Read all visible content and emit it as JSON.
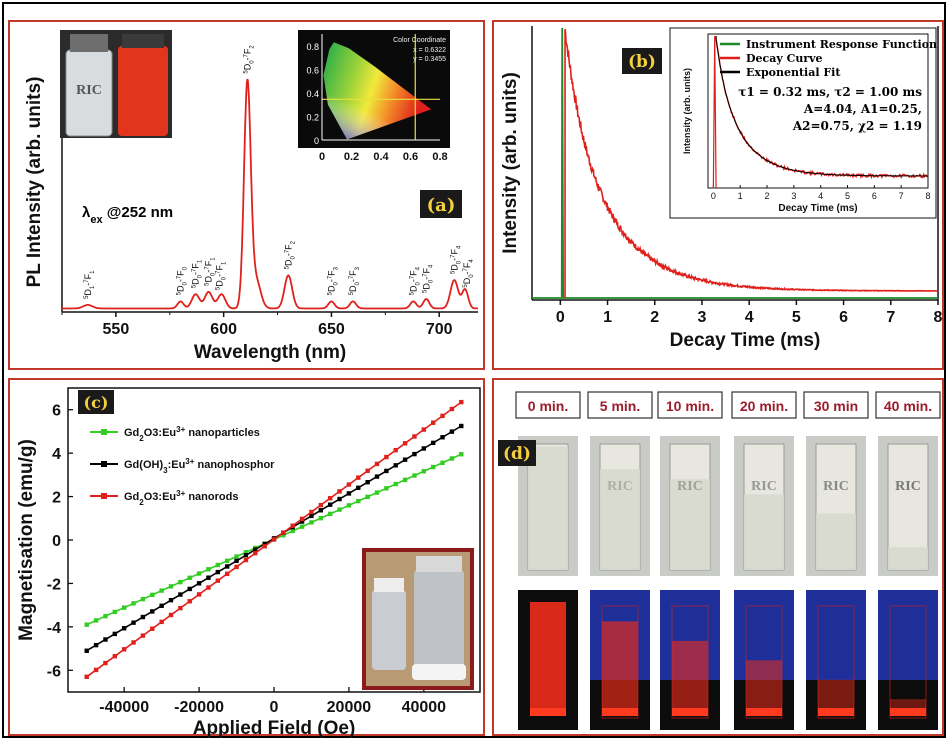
{
  "panels": {
    "a": {
      "label": "(a)",
      "excitation": "λex @252 nm",
      "excitation_main": "λ",
      "excitation_sub": "ex",
      "excitation_rest": " @252 nm",
      "cie_title": "Color Coordinate",
      "cie_x": "x = 0.6322",
      "cie_y": "y = 0.3455",
      "transitions": [
        {
          "x": 537,
          "text": "5D1-7F1"
        },
        {
          "x": 580,
          "text": "5D0-7F0"
        },
        {
          "x": 587,
          "text": "5D0-7F1"
        },
        {
          "x": 593,
          "text": "5D0-7F1"
        },
        {
          "x": 598,
          "text": "5D0-7F1"
        },
        {
          "x": 611,
          "text": "5D0-7F2"
        },
        {
          "x": 630,
          "text": "5D0-7F2"
        },
        {
          "x": 650,
          "text": "5D0-7F3"
        },
        {
          "x": 660,
          "text": "5D0-7F3"
        },
        {
          "x": 688,
          "text": "5D0-7F4"
        },
        {
          "x": 694,
          "text": "5D0-7F4"
        },
        {
          "x": 707,
          "text": "5D0-7F4"
        },
        {
          "x": 713,
          "text": "5D0-7F4"
        }
      ]
    },
    "b": {
      "label": "(b)",
      "inset_ylabel": "Intensity (arb. units)",
      "inset_xlabel": "Decay Time (ms)",
      "fit_params": [
        "τ1 = 0.32  ms, τ2 = 1.00 ms",
        "A=4.04, A1=0.25,",
        "A2=0.75, χ2 = 1.19"
      ]
    },
    "c": {
      "label": "(c)"
    },
    "d": {
      "label": "(d)",
      "times": [
        "0 min.",
        "5 min.",
        "10 min.",
        "20 min.",
        "30 min",
        "40 min."
      ]
    }
  },
  "chart_data": [
    {
      "type": "line",
      "panel": "a",
      "xlabel": "Wavelength (nm)",
      "ylabel": "PL Intensity (arb. units)",
      "xlim": [
        525,
        718
      ],
      "xticks": [
        550,
        600,
        650,
        700
      ],
      "ylim": [
        0,
        1.1
      ],
      "series": [
        {
          "name": "PL emission",
          "color": "#e0201b",
          "peaks": [
            {
              "x": 537,
              "h": 0.015,
              "w": 3
            },
            {
              "x": 580,
              "h": 0.03,
              "w": 2
            },
            {
              "x": 587,
              "h": 0.06,
              "w": 2.5
            },
            {
              "x": 593,
              "h": 0.07,
              "w": 2.5
            },
            {
              "x": 599,
              "h": 0.06,
              "w": 2.5
            },
            {
              "x": 611,
              "h": 0.95,
              "w": 2.2
            },
            {
              "x": 615,
              "h": 0.12,
              "w": 3
            },
            {
              "x": 630,
              "h": 0.14,
              "w": 2.5
            },
            {
              "x": 650,
              "h": 0.03,
              "w": 2
            },
            {
              "x": 660,
              "h": 0.03,
              "w": 2
            },
            {
              "x": 688,
              "h": 0.03,
              "w": 2
            },
            {
              "x": 694,
              "h": 0.04,
              "w": 2
            },
            {
              "x": 707,
              "h": 0.12,
              "w": 2.5
            },
            {
              "x": 712,
              "h": 0.08,
              "w": 2
            }
          ]
        }
      ],
      "inset": {
        "type": "scatter",
        "title": "Color Coordinate",
        "xlim": [
          0,
          0.8
        ],
        "ylim": [
          0,
          0.9
        ],
        "xticks": [
          0,
          0.2,
          0.4,
          0.6,
          0.8
        ],
        "yticks": [
          0,
          0.2,
          0.4,
          0.6,
          0.8
        ],
        "point": {
          "x": 0.6322,
          "y": 0.3455
        }
      }
    },
    {
      "type": "line",
      "panel": "b",
      "xlabel": "Decay Time (ms)",
      "ylabel": "Intensity (arb. units)",
      "xlim": [
        -0.6,
        8
      ],
      "xticks": [
        0,
        1,
        2,
        3,
        4,
        5,
        6,
        7,
        8
      ],
      "series": [
        {
          "name": "Instrument Response Function",
          "color": "#1e8a2a",
          "peak_at": 0.05,
          "width": 0.04
        },
        {
          "name": "Decay Curve",
          "color": "#e0201b",
          "tau1": 0.32,
          "tau2": 1.0,
          "A1": 0.25,
          "A2": 0.75,
          "start": 0.1
        },
        {
          "name": "Exponential Fit",
          "color": "#000000"
        }
      ],
      "inset": {
        "xlim": [
          -0.2,
          8
        ],
        "xticks": [
          0,
          1,
          2,
          3,
          4,
          5,
          6,
          7,
          8
        ],
        "xlabel": "Decay Time (ms)",
        "ylabel": "Intensity (arb. units)"
      }
    },
    {
      "type": "line",
      "panel": "c",
      "xlabel": "Applied Field (Oe)",
      "ylabel": "Magnetisation (emu/g)",
      "xlim": [
        -55000,
        55000
      ],
      "ylim": [
        -7,
        7
      ],
      "xticks": [
        -40000,
        -20000,
        0,
        20000,
        40000
      ],
      "yticks": [
        -6,
        -4,
        -2,
        0,
        2,
        4,
        6
      ],
      "series": [
        {
          "name": "Gd2O3:Eu3+ nanoparticles",
          "color": "#33cc22",
          "x0": -50000,
          "x1": 50000,
          "y0": -3.9,
          "y1": 3.95
        },
        {
          "name": "Gd(OH)3:Eu3+ nanophosphor",
          "color": "#000000",
          "x0": -50000,
          "x1": 50000,
          "y0": -5.1,
          "y1": 5.25
        },
        {
          "name": "Gd2O3:Eu3+ nanorods",
          "color": "#e0201b",
          "x0": -50000,
          "x1": 50000,
          "y0": -6.3,
          "y1": 6.35
        }
      ]
    }
  ]
}
